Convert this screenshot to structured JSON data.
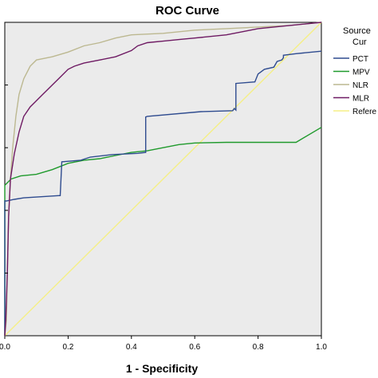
{
  "chart_data": {
    "type": "line",
    "title": "ROC Curve",
    "xlabel": "1 - Specificity",
    "ylabel": "",
    "xlim": [
      0,
      1
    ],
    "ylim": [
      0,
      1
    ],
    "x_ticks": [
      "0.0",
      "0.2",
      "0.4",
      "0.6",
      "0.8",
      "1.0"
    ],
    "legend": {
      "title_lines": [
        "Source",
        "Cur"
      ],
      "position": "right"
    },
    "series": [
      {
        "name": "PCT",
        "color": "#2e4b8f",
        "points": [
          [
            0,
            0
          ],
          [
            0,
            0.43
          ],
          [
            0.005,
            0.43
          ],
          [
            0.03,
            0.435
          ],
          [
            0.06,
            0.44
          ],
          [
            0.17,
            0.447
          ],
          [
            0.175,
            0.447
          ],
          [
            0.18,
            0.555
          ],
          [
            0.24,
            0.56
          ],
          [
            0.27,
            0.57
          ],
          [
            0.34,
            0.578
          ],
          [
            0.42,
            0.582
          ],
          [
            0.445,
            0.585
          ],
          [
            0.445,
            0.698
          ],
          [
            0.45,
            0.7
          ],
          [
            0.62,
            0.715
          ],
          [
            0.72,
            0.718
          ],
          [
            0.725,
            0.725
          ],
          [
            0.73,
            0.72
          ],
          [
            0.73,
            0.805
          ],
          [
            0.79,
            0.81
          ],
          [
            0.8,
            0.835
          ],
          [
            0.82,
            0.85
          ],
          [
            0.85,
            0.857
          ],
          [
            0.86,
            0.875
          ],
          [
            0.875,
            0.88
          ],
          [
            0.88,
            0.887
          ],
          [
            0.88,
            0.895
          ],
          [
            0.92,
            0.9
          ],
          [
            1.0,
            0.908
          ]
        ]
      },
      {
        "name": "MPV",
        "color": "#1f9a2c",
        "points": [
          [
            0,
            0
          ],
          [
            0,
            0.48
          ],
          [
            0.02,
            0.5
          ],
          [
            0.05,
            0.51
          ],
          [
            0.1,
            0.515
          ],
          [
            0.15,
            0.53
          ],
          [
            0.2,
            0.55
          ],
          [
            0.25,
            0.56
          ],
          [
            0.3,
            0.565
          ],
          [
            0.35,
            0.575
          ],
          [
            0.4,
            0.585
          ],
          [
            0.45,
            0.59
          ],
          [
            0.5,
            0.6
          ],
          [
            0.55,
            0.61
          ],
          [
            0.6,
            0.615
          ],
          [
            0.7,
            0.617
          ],
          [
            0.8,
            0.617
          ],
          [
            0.92,
            0.617
          ],
          [
            1.0,
            0.665
          ]
        ]
      },
      {
        "name": "NLR",
        "color": "#bcb890",
        "points": [
          [
            0,
            0
          ],
          [
            0.005,
            0.05
          ],
          [
            0.008,
            0.2
          ],
          [
            0.012,
            0.38
          ],
          [
            0.018,
            0.5
          ],
          [
            0.025,
            0.6
          ],
          [
            0.035,
            0.7
          ],
          [
            0.045,
            0.77
          ],
          [
            0.06,
            0.82
          ],
          [
            0.07,
            0.84
          ],
          [
            0.08,
            0.86
          ],
          [
            0.1,
            0.88
          ],
          [
            0.15,
            0.89
          ],
          [
            0.2,
            0.905
          ],
          [
            0.25,
            0.925
          ],
          [
            0.3,
            0.935
          ],
          [
            0.35,
            0.95
          ],
          [
            0.4,
            0.96
          ],
          [
            0.5,
            0.965
          ],
          [
            0.55,
            0.97
          ],
          [
            0.6,
            0.975
          ],
          [
            0.7,
            0.98
          ],
          [
            0.8,
            0.985
          ],
          [
            0.9,
            0.99
          ],
          [
            1.0,
            1.0
          ]
        ]
      },
      {
        "name": "MLR",
        "color": "#6e1a63",
        "points": [
          [
            0,
            0
          ],
          [
            0.003,
            0.05
          ],
          [
            0.008,
            0.2
          ],
          [
            0.012,
            0.38
          ],
          [
            0.018,
            0.5
          ],
          [
            0.03,
            0.58
          ],
          [
            0.045,
            0.65
          ],
          [
            0.06,
            0.7
          ],
          [
            0.08,
            0.73
          ],
          [
            0.1,
            0.75
          ],
          [
            0.12,
            0.77
          ],
          [
            0.15,
            0.8
          ],
          [
            0.17,
            0.82
          ],
          [
            0.2,
            0.85
          ],
          [
            0.22,
            0.86
          ],
          [
            0.25,
            0.87
          ],
          [
            0.3,
            0.88
          ],
          [
            0.35,
            0.89
          ],
          [
            0.4,
            0.91
          ],
          [
            0.42,
            0.925
          ],
          [
            0.45,
            0.935
          ],
          [
            0.5,
            0.94
          ],
          [
            0.55,
            0.945
          ],
          [
            0.6,
            0.95
          ],
          [
            0.7,
            0.96
          ],
          [
            0.75,
            0.97
          ],
          [
            0.8,
            0.98
          ],
          [
            0.9,
            0.99
          ],
          [
            1.0,
            1.0
          ]
        ]
      },
      {
        "name": "Refere",
        "color": "#f5ef86",
        "points": [
          [
            0,
            0
          ],
          [
            1,
            1
          ]
        ]
      }
    ]
  }
}
